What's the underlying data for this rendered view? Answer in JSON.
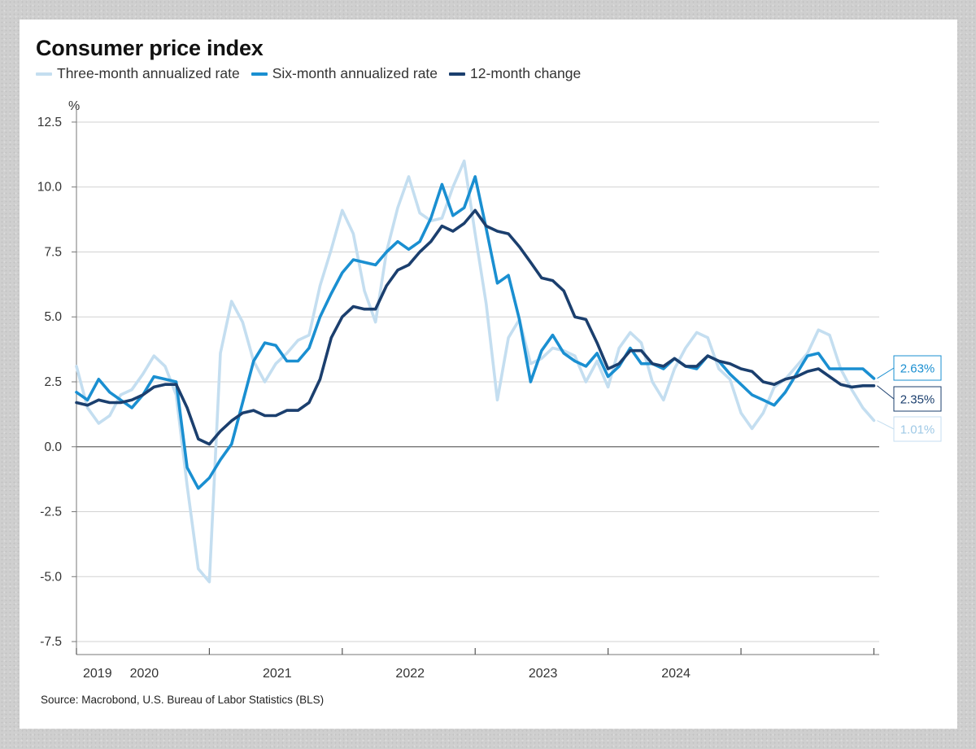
{
  "chart_data": {
    "type": "line",
    "title": "Consumer price index",
    "ylabel": "%",
    "ylim": [
      -8.0,
      13.0
    ],
    "yticks": [
      12.5,
      10.0,
      7.5,
      5.0,
      2.5,
      0.0,
      -2.5,
      -5.0,
      -7.5
    ],
    "ytick_labels": [
      "12.5",
      "10.0",
      "7.5",
      "5.0",
      "2.5",
      "0.0",
      "-2.5",
      "-5.0",
      "-7.5"
    ],
    "xlim": [
      2019.0,
      2025.04
    ],
    "xtick_labels": [
      "2019",
      "2020",
      "2021",
      "2022",
      "2023",
      "2024"
    ],
    "grid": true,
    "legend_position": "top-left",
    "series": [
      {
        "name": "Three-month annualized rate",
        "color": "#c4def0",
        "end_label": "1.01%",
        "x": [
          2019.0,
          2019.083,
          2019.167,
          2019.25,
          2019.333,
          2019.417,
          2019.5,
          2019.583,
          2019.667,
          2019.75,
          2019.833,
          2019.917,
          2020.0,
          2020.083,
          2020.167,
          2020.25,
          2020.333,
          2020.417,
          2020.5,
          2020.583,
          2020.667,
          2020.75,
          2020.833,
          2020.917,
          2021.0,
          2021.083,
          2021.167,
          2021.25,
          2021.333,
          2021.417,
          2021.5,
          2021.583,
          2021.667,
          2021.75,
          2021.833,
          2021.917,
          2022.0,
          2022.083,
          2022.167,
          2022.25,
          2022.333,
          2022.417,
          2022.5,
          2022.583,
          2022.667,
          2022.75,
          2022.833,
          2022.917,
          2023.0,
          2023.083,
          2023.167,
          2023.25,
          2023.333,
          2023.417,
          2023.5,
          2023.583,
          2023.667,
          2023.75,
          2023.833,
          2023.917,
          2024.0,
          2024.083,
          2024.167,
          2024.25,
          2024.333,
          2024.417,
          2024.5,
          2024.583,
          2024.667,
          2024.75,
          2024.833,
          2024.917,
          2025.0
        ],
        "values": [
          3.1,
          1.5,
          0.9,
          1.2,
          2.0,
          2.2,
          2.8,
          3.5,
          3.1,
          2.0,
          -1.5,
          -4.7,
          -5.2,
          3.6,
          5.6,
          4.8,
          3.3,
          2.5,
          3.2,
          3.6,
          4.1,
          4.3,
          6.2,
          7.6,
          9.1,
          8.2,
          6.0,
          4.8,
          7.5,
          9.2,
          10.4,
          9.0,
          8.7,
          8.8,
          10.0,
          11.0,
          8.2,
          5.5,
          1.8,
          4.2,
          4.9,
          3.2,
          3.4,
          3.8,
          3.7,
          3.5,
          2.5,
          3.3,
          2.3,
          3.8,
          4.4,
          4.0,
          2.5,
          1.8,
          3.0,
          3.8,
          4.4,
          4.2,
          3.0,
          2.6,
          1.3,
          0.7,
          1.3,
          2.3,
          2.6,
          3.1,
          3.6,
          4.5,
          4.3,
          3.0,
          2.2,
          1.5,
          1.01
        ]
      },
      {
        "name": "Six-month annualized rate",
        "color": "#1a8fd1",
        "end_label": "2.63%",
        "x": [
          2019.0,
          2019.083,
          2019.167,
          2019.25,
          2019.333,
          2019.417,
          2019.5,
          2019.583,
          2019.667,
          2019.75,
          2019.833,
          2019.917,
          2020.0,
          2020.083,
          2020.167,
          2020.25,
          2020.333,
          2020.417,
          2020.5,
          2020.583,
          2020.667,
          2020.75,
          2020.833,
          2020.917,
          2021.0,
          2021.083,
          2021.167,
          2021.25,
          2021.333,
          2021.417,
          2021.5,
          2021.583,
          2021.667,
          2021.75,
          2021.833,
          2021.917,
          2022.0,
          2022.083,
          2022.167,
          2022.25,
          2022.333,
          2022.417,
          2022.5,
          2022.583,
          2022.667,
          2022.75,
          2022.833,
          2022.917,
          2023.0,
          2023.083,
          2023.167,
          2023.25,
          2023.333,
          2023.417,
          2023.5,
          2023.583,
          2023.667,
          2023.75,
          2023.833,
          2023.917,
          2024.0,
          2024.083,
          2024.167,
          2024.25,
          2024.333,
          2024.417,
          2024.5,
          2024.583,
          2024.667,
          2024.75,
          2024.833,
          2024.917,
          2025.0
        ],
        "values": [
          2.1,
          1.8,
          2.6,
          2.1,
          1.8,
          1.5,
          2.0,
          2.7,
          2.6,
          2.5,
          -0.8,
          -1.6,
          -1.2,
          -0.5,
          0.1,
          1.7,
          3.3,
          4.0,
          3.9,
          3.3,
          3.3,
          3.8,
          5.0,
          5.9,
          6.7,
          7.2,
          7.1,
          7.0,
          7.5,
          7.9,
          7.6,
          7.9,
          8.8,
          10.1,
          8.9,
          9.2,
          10.4,
          8.4,
          6.3,
          6.6,
          4.9,
          2.5,
          3.7,
          4.3,
          3.6,
          3.3,
          3.1,
          3.6,
          2.7,
          3.1,
          3.8,
          3.2,
          3.2,
          3.0,
          3.4,
          3.1,
          3.0,
          3.5,
          3.3,
          2.8,
          2.4,
          2.0,
          1.8,
          1.6,
          2.1,
          2.8,
          3.5,
          3.6,
          3.0,
          3.0,
          3.0,
          3.0,
          2.63
        ]
      },
      {
        "name": "12-month change",
        "color": "#1b3f6e",
        "end_label": "2.35%",
        "x": [
          2019.0,
          2019.083,
          2019.167,
          2019.25,
          2019.333,
          2019.417,
          2019.5,
          2019.583,
          2019.667,
          2019.75,
          2019.833,
          2019.917,
          2020.0,
          2020.083,
          2020.167,
          2020.25,
          2020.333,
          2020.417,
          2020.5,
          2020.583,
          2020.667,
          2020.75,
          2020.833,
          2020.917,
          2021.0,
          2021.083,
          2021.167,
          2021.25,
          2021.333,
          2021.417,
          2021.5,
          2021.583,
          2021.667,
          2021.75,
          2021.833,
          2021.917,
          2022.0,
          2022.083,
          2022.167,
          2022.25,
          2022.333,
          2022.417,
          2022.5,
          2022.583,
          2022.667,
          2022.75,
          2022.833,
          2022.917,
          2023.0,
          2023.083,
          2023.167,
          2023.25,
          2023.333,
          2023.417,
          2023.5,
          2023.583,
          2023.667,
          2023.75,
          2023.833,
          2023.917,
          2024.0,
          2024.083,
          2024.167,
          2024.25,
          2024.333,
          2024.417,
          2024.5,
          2024.583,
          2024.667,
          2024.75,
          2024.833,
          2024.917,
          2025.0
        ],
        "values": [
          1.7,
          1.6,
          1.8,
          1.7,
          1.7,
          1.8,
          2.0,
          2.3,
          2.4,
          2.4,
          1.5,
          0.3,
          0.1,
          0.6,
          1.0,
          1.3,
          1.4,
          1.2,
          1.2,
          1.4,
          1.4,
          1.7,
          2.6,
          4.2,
          5.0,
          5.4,
          5.3,
          5.3,
          6.2,
          6.8,
          7.0,
          7.5,
          7.9,
          8.5,
          8.3,
          8.6,
          9.1,
          8.5,
          8.3,
          8.2,
          7.7,
          7.1,
          6.5,
          6.4,
          6.0,
          5.0,
          4.9,
          4.0,
          3.0,
          3.2,
          3.7,
          3.7,
          3.2,
          3.1,
          3.4,
          3.1,
          3.1,
          3.5,
          3.3,
          3.2,
          3.0,
          2.9,
          2.5,
          2.4,
          2.6,
          2.7,
          2.9,
          3.0,
          2.7,
          2.4,
          2.3,
          2.35,
          2.35
        ]
      }
    ],
    "source": "Source: Macrobond, U.S. Bureau of Labor Statistics (BLS)"
  }
}
